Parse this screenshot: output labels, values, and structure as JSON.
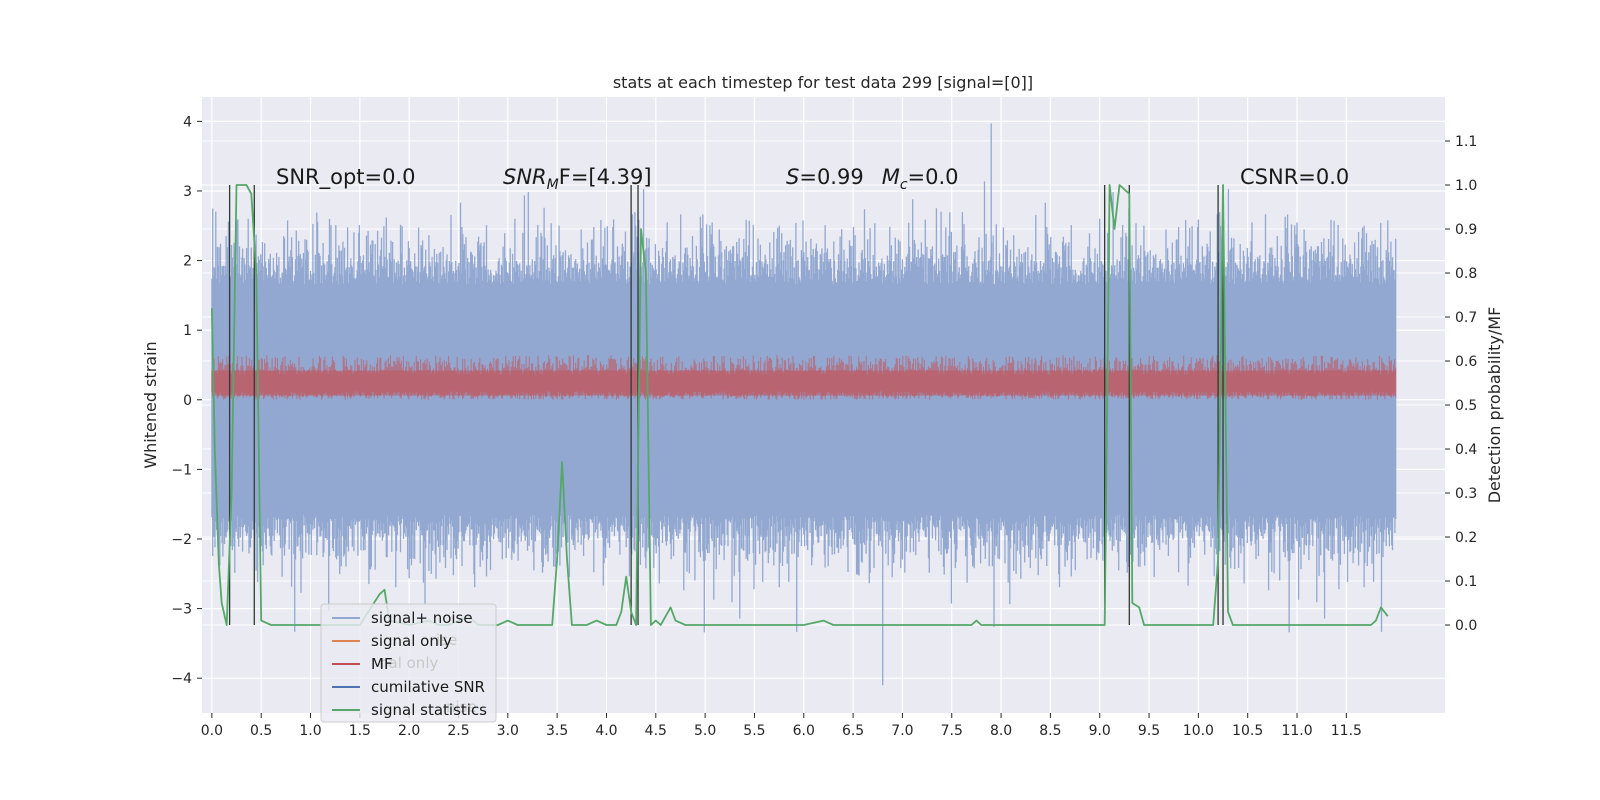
{
  "chart_data": {
    "type": "line",
    "title": "stats at each timestep for test data 299 [signal=[0]]",
    "ylabel": "Whitened strain",
    "y2label": "Detection probability/MF",
    "xlim": [
      -0.1,
      12.5
    ],
    "ylim": [
      -4.5,
      4.35
    ],
    "y2lim": [
      -0.2,
      1.2
    ],
    "x_ticks": [
      0.0,
      0.5,
      1.0,
      1.5,
      2.0,
      2.5,
      3.0,
      3.5,
      4.0,
      4.5,
      5.0,
      5.5,
      6.0,
      6.5,
      7.0,
      7.5,
      8.0,
      8.5,
      9.0,
      9.5,
      10.0,
      10.5,
      11.0,
      11.5
    ],
    "x_tick_labels": [
      "0.0",
      "0.5",
      "1.0",
      "1.5",
      "2.0",
      "2.5",
      "3.0",
      "3.5",
      "4.0",
      "4.5",
      "5.0",
      "5.5",
      "6.0",
      "6.5",
      "7.0",
      "7.5",
      "8.0",
      "8.5",
      "9.0",
      "9.5",
      "10.0",
      "10.5",
      "11.0",
      "11.5"
    ],
    "y_ticks": [
      4,
      3,
      2,
      1,
      0,
      -1,
      -2,
      -3,
      -4
    ],
    "y_tick_labels": [
      "4",
      "3",
      "2",
      "1",
      "0",
      "−1",
      "−2",
      "−3",
      "−4"
    ],
    "y2_ticks": [
      1.1,
      1.0,
      0.9,
      0.8,
      0.7,
      0.6,
      0.5,
      0.4,
      0.3,
      0.2,
      0.1,
      0.0
    ],
    "y2_tick_labels": [
      "1.1",
      "1.0",
      "0.9",
      "0.8",
      "0.7",
      "0.6",
      "0.5",
      "0.4",
      "0.3",
      "0.2",
      "0.1",
      "0.0"
    ],
    "grid": true,
    "legend_position": "lower-left",
    "legend": [
      {
        "label": "signal+ noise",
        "color": "#92a8d1"
      },
      {
        "label": "signal only",
        "color": "#dd8452"
      },
      {
        "label": "MF",
        "color": "#c44e52"
      },
      {
        "label": "cumilative SNR",
        "color": "#4c72b0"
      },
      {
        "label": "signal statistics",
        "color": "#55a868"
      }
    ],
    "legend_ghost_labels": [
      "ise",
      "nal only",
      "nise"
    ],
    "annotations": {
      "snr_opt": "SNR_opt=0.0",
      "snr_mf_var": "SNR",
      "snr_mf_sub": "M",
      "snr_mf_rest": "F=[4.39]",
      "s_var": "S",
      "s_value": "=0.99",
      "mc_var": "M",
      "mc_sub": "c",
      "mc_value": "=0.0",
      "csnr": "CSNR=0.0"
    },
    "series": [
      {
        "name": "signal+ noise",
        "axis": "left",
        "color": "#92a8d1",
        "x_range": [
          0.0,
          12.0
        ],
        "typical_range": [
          -2.3,
          2.3
        ],
        "peak_max": 3.97,
        "peak_max_x": 7.9,
        "peak_min": -4.1,
        "peak_min_x": 6.8
      },
      {
        "name": "MF",
        "axis": "left",
        "color": "#c44e52",
        "x_range": [
          0.0,
          12.0
        ],
        "typical_range": [
          0.0,
          0.6
        ]
      },
      {
        "name": "signal statistics",
        "axis": "right",
        "color": "#55a868",
        "points": [
          [
            0.0,
            0.72
          ],
          [
            0.03,
            0.4
          ],
          [
            0.07,
            0.14
          ],
          [
            0.1,
            0.05
          ],
          [
            0.15,
            0.0
          ],
          [
            0.2,
            0.3
          ],
          [
            0.25,
            1.0
          ],
          [
            0.3,
            1.0
          ],
          [
            0.35,
            1.0
          ],
          [
            0.4,
            0.98
          ],
          [
            0.45,
            0.8
          ],
          [
            0.5,
            0.01
          ],
          [
            0.6,
            0.0
          ],
          [
            1.0,
            0.0
          ],
          [
            1.5,
            0.0
          ],
          [
            1.7,
            0.07
          ],
          [
            1.75,
            0.08
          ],
          [
            1.8,
            0.01
          ],
          [
            2.0,
            0.0
          ],
          [
            2.2,
            0.01
          ],
          [
            2.3,
            0.0
          ],
          [
            2.4,
            0.0
          ],
          [
            2.6,
            0.02
          ],
          [
            2.7,
            0.0
          ],
          [
            2.9,
            0.0
          ],
          [
            3.0,
            0.01
          ],
          [
            3.1,
            0.0
          ],
          [
            3.45,
            0.0
          ],
          [
            3.5,
            0.15
          ],
          [
            3.55,
            0.37
          ],
          [
            3.6,
            0.15
          ],
          [
            3.65,
            0.0
          ],
          [
            3.8,
            0.0
          ],
          [
            3.9,
            0.01
          ],
          [
            4.0,
            0.0
          ],
          [
            4.1,
            0.0
          ],
          [
            4.15,
            0.03
          ],
          [
            4.2,
            0.11
          ],
          [
            4.25,
            0.03
          ],
          [
            4.3,
            0.0
          ],
          [
            4.35,
            0.9
          ],
          [
            4.4,
            0.8
          ],
          [
            4.45,
            0.0
          ],
          [
            4.5,
            0.01
          ],
          [
            4.55,
            0.0
          ],
          [
            4.65,
            0.04
          ],
          [
            4.7,
            0.01
          ],
          [
            4.8,
            0.0
          ],
          [
            6.0,
            0.0
          ],
          [
            6.2,
            0.01
          ],
          [
            6.3,
            0.0
          ],
          [
            7.7,
            0.0
          ],
          [
            7.75,
            0.01
          ],
          [
            7.8,
            0.0
          ],
          [
            9.0,
            0.0
          ],
          [
            9.05,
            0.0
          ],
          [
            9.1,
            1.0
          ],
          [
            9.15,
            0.9
          ],
          [
            9.2,
            1.0
          ],
          [
            9.3,
            0.98
          ],
          [
            9.33,
            0.05
          ],
          [
            9.4,
            0.04
          ],
          [
            9.45,
            0.0
          ],
          [
            9.8,
            0.0
          ],
          [
            10.1,
            0.0
          ],
          [
            10.15,
            0.0
          ],
          [
            10.2,
            0.15
          ],
          [
            10.25,
            1.0
          ],
          [
            10.3,
            0.03
          ],
          [
            10.35,
            0.0
          ],
          [
            11.4,
            0.0
          ],
          [
            11.75,
            0.0
          ],
          [
            11.8,
            0.01
          ],
          [
            11.85,
            0.04
          ],
          [
            11.92,
            0.02
          ]
        ]
      }
    ],
    "vertical_markers_x": [
      0.18,
      0.43,
      4.25,
      4.32,
      9.05,
      9.3,
      10.2,
      10.25
    ]
  }
}
